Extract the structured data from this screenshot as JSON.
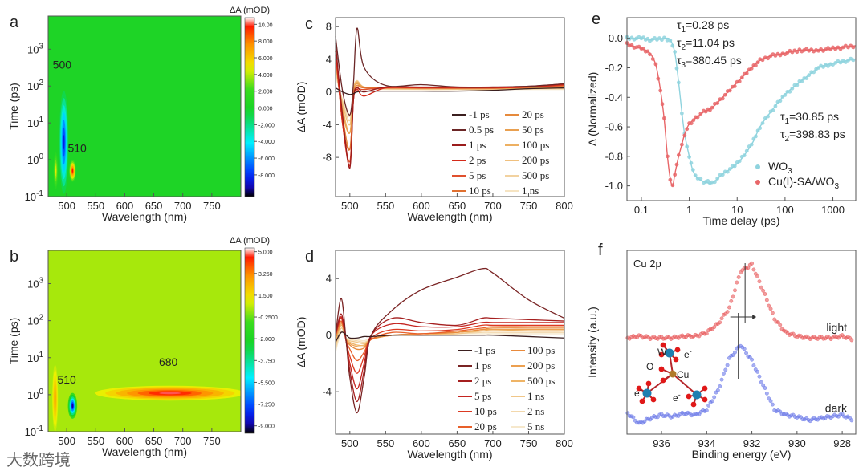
{
  "watermark": "大数跨境",
  "chart_data": [
    {
      "panel": "a",
      "type": "heatmap",
      "xlabel": "Wavelength (nm)",
      "ylabel": "Time (ps)",
      "colorbar_label": "ΔA (mOD)",
      "xlim": [
        468,
        800
      ],
      "ylim_log10": [
        -1,
        3.9
      ],
      "xticks": [
        500,
        550,
        600,
        650,
        700,
        750
      ],
      "yticks_log10": [
        -1,
        0,
        1,
        2,
        3
      ],
      "colorbar_range": [
        -10.6,
        10.8
      ],
      "colorbar_ticks": [
        "10.00",
        "8.000",
        "6.000",
        "4.000",
        "2.000",
        "0.000",
        "-2.000",
        "-4.000",
        "-6.000",
        "-8.000"
      ],
      "colorbar_tick_values": [
        10,
        8,
        6,
        4,
        2,
        0,
        -2,
        -4,
        -6,
        -8
      ],
      "background_dA": 0.3,
      "features": [
        {
          "wavelength": 481,
          "time": 0.5,
          "dA": 5,
          "wl_halfwidth": 4,
          "log_time_halfwidth": 0.5
        },
        {
          "wavelength": 495,
          "time": 3,
          "dA": -8.5,
          "wl_halfwidth": 8,
          "log_time_halfwidth": 1.4
        },
        {
          "wavelength": 510,
          "time": 0.5,
          "dA": 10,
          "wl_halfwidth": 6,
          "log_time_halfwidth": 0.3
        }
      ],
      "annotations": [
        {
          "text": "500",
          "wavelength": 492,
          "time": 300
        },
        {
          "text": "510",
          "wavelength": 518,
          "time": 1.6
        }
      ]
    },
    {
      "panel": "b",
      "type": "heatmap",
      "xlabel": "Wavelength (nm)",
      "ylabel": "Time (ps)",
      "colorbar_label": "ΔA (mOD)",
      "xlim": [
        468,
        800
      ],
      "ylim_log10": [
        -1,
        3.9
      ],
      "xticks": [
        500,
        550,
        600,
        650,
        700,
        750
      ],
      "yticks_log10": [
        -1,
        0,
        1,
        2,
        3
      ],
      "colorbar_range": [
        -9.6,
        5.3
      ],
      "colorbar_ticks": [
        "5.000",
        "3.250",
        "1.500",
        "-0.2500",
        "-2.000",
        "-3.750",
        "-5.500",
        "-7.250",
        "-9.000"
      ],
      "colorbar_tick_values": [
        5,
        3.25,
        1.5,
        -0.25,
        -2,
        -3.75,
        -5.5,
        -7.25,
        -9
      ],
      "background_dA": 0.4,
      "features": [
        {
          "wavelength": 480,
          "time": 0.8,
          "dA": 2.8,
          "wl_halfwidth": 5,
          "log_time_halfwidth": 0.9
        },
        {
          "wavelength": 678,
          "time": 1.1,
          "dA": 5,
          "wl_halfwidth": 130,
          "log_time_halfwidth": 0.2
        },
        {
          "wavelength": 510,
          "time": 0.5,
          "dA": -9,
          "wl_halfwidth": 8,
          "log_time_halfwidth": 0.35
        }
      ],
      "annotations": [
        {
          "text": "510",
          "wavelength": 500,
          "time": 2
        },
        {
          "text": "680",
          "wavelength": 675,
          "time": 6
        }
      ]
    },
    {
      "panel": "c",
      "type": "line",
      "xlabel": "Wavelength (nm)",
      "ylabel": "ΔA (mOD)",
      "xlim": [
        480,
        800
      ],
      "ylim": [
        -12.8,
        9.1
      ],
      "xticks": [
        500,
        550,
        600,
        650,
        700,
        750,
        800
      ],
      "yticks": [
        8,
        4,
        0,
        -4,
        -8
      ],
      "x": [
        480,
        490,
        500,
        505,
        510,
        520,
        550,
        600,
        650,
        700,
        750,
        800
      ],
      "series": [
        {
          "name": "-1 ps",
          "color": "#3b1f1f",
          "values": [
            0.5,
            0,
            -0.3,
            -0.2,
            0,
            0.1,
            0.1,
            0.1,
            0.1,
            0.2,
            0.4,
            0.5
          ]
        },
        {
          "name": "0.5 ps",
          "color": "#6b2626",
          "values": [
            6.8,
            0,
            -2.8,
            1,
            7.8,
            3,
            0.8,
            0.9,
            0.6,
            0.6,
            0.7,
            1.0
          ]
        },
        {
          "name": "1 ps",
          "color": "#9b1c1c",
          "values": [
            6,
            -3,
            -9.3,
            -1,
            0.5,
            0,
            0.6,
            0.6,
            0.6,
            0.6,
            0.7,
            1
          ]
        },
        {
          "name": "2 ps",
          "color": "#d42a1a",
          "values": [
            5,
            -4,
            -9,
            -1,
            0.3,
            -0.5,
            0.5,
            0.5,
            0.5,
            0.5,
            0.6,
            0.9
          ]
        },
        {
          "name": "5 ps",
          "color": "#e0502e",
          "values": [
            5,
            -4,
            -8.5,
            -1,
            0.3,
            0.3,
            0.5,
            0.5,
            0.5,
            0.5,
            0.6,
            0.8
          ]
        },
        {
          "name": "10 ps",
          "color": "#e07030",
          "values": [
            5,
            -4,
            -7,
            -0.5,
            0.6,
            0.5,
            0.5,
            0.5,
            0.5,
            0.5,
            0.6,
            0.8
          ]
        },
        {
          "name": "20 ps",
          "color": "#e68a3c",
          "values": [
            4.5,
            -3,
            -7,
            -0.5,
            0.8,
            0.5,
            0.5,
            0.5,
            0.5,
            0.5,
            0.6,
            0.7
          ]
        },
        {
          "name": "50 ps",
          "color": "#e9a050",
          "values": [
            4,
            -2.5,
            -5,
            0,
            1,
            0.6,
            0.5,
            0.5,
            0.4,
            0.4,
            0.5,
            0.6
          ]
        },
        {
          "name": "100 ps",
          "color": "#edb062",
          "values": [
            3.5,
            -2,
            -5,
            0,
            1.2,
            0.6,
            0.5,
            0.4,
            0.4,
            0.4,
            0.5,
            0.6
          ]
        },
        {
          "name": "200 ps",
          "color": "#f0c07e",
          "values": [
            3,
            -1.5,
            -4,
            0.3,
            1.3,
            0.6,
            0.4,
            0.4,
            0.4,
            0.4,
            0.4,
            0.5
          ]
        },
        {
          "name": "500 ps",
          "color": "#f2d2a0",
          "values": [
            2.5,
            -1.2,
            -3.5,
            0.3,
            1.4,
            0.6,
            0.4,
            0.3,
            0.3,
            0.3,
            0.4,
            0.4
          ]
        },
        {
          "name": "1 ns",
          "color": "#f6e4c2",
          "values": [
            2,
            -1,
            -3,
            0.3,
            1.2,
            0.5,
            0.3,
            0.3,
            0.3,
            0.3,
            0.3,
            0.3
          ]
        }
      ]
    },
    {
      "panel": "d",
      "type": "line",
      "xlabel": "Wavelength (nm)",
      "ylabel": "ΔA (mOD)",
      "xlim": [
        480,
        800
      ],
      "ylim": [
        -7,
        6
      ],
      "xticks": [
        500,
        550,
        600,
        650,
        700,
        750,
        800
      ],
      "yticks": [
        4,
        0,
        -4
      ],
      "x": [
        480,
        488,
        495,
        500,
        510,
        520,
        530,
        560,
        600,
        650,
        685,
        700,
        750,
        800
      ],
      "series": [
        {
          "name": "-1 ps",
          "color": "#3b1f1f",
          "values": [
            -0.5,
            0.2,
            0,
            -0.2,
            -0.2,
            -0.1,
            -0.1,
            0,
            0,
            0,
            0,
            0,
            -0.1,
            -0.2
          ]
        },
        {
          "name": "1 ps",
          "color": "#7a2424",
          "values": [
            0,
            2.6,
            -0.5,
            -3,
            -5.5,
            -3,
            0,
            1.8,
            3.2,
            4.1,
            4.7,
            4.4,
            2.5,
            1.2
          ]
        },
        {
          "name": "2 ps",
          "color": "#a51f1f",
          "values": [
            0,
            1.5,
            -0.5,
            -2.5,
            -4.7,
            -2.5,
            0,
            1.2,
            0.9,
            0.7,
            1.2,
            1.2,
            1.1,
            1.0
          ]
        },
        {
          "name": "5 ps",
          "color": "#c42420",
          "values": [
            0,
            1.3,
            -0.5,
            -2,
            -3.8,
            -2,
            0,
            0.8,
            0.6,
            0.6,
            0.9,
            0.9,
            0.9,
            0.9
          ]
        },
        {
          "name": "10 ps",
          "color": "#dc3a22",
          "values": [
            0,
            1.2,
            -0.5,
            -1.5,
            -2.7,
            -1.5,
            -0.2,
            0.4,
            0.3,
            0.4,
            0.7,
            0.7,
            0.7,
            0.7
          ]
        },
        {
          "name": "20 ps",
          "color": "#e8602a",
          "values": [
            0,
            1,
            -0.4,
            -1,
            -1.8,
            -1.2,
            -0.3,
            0.2,
            0.1,
            0.3,
            0.5,
            0.6,
            0.6,
            0.6
          ]
        },
        {
          "name": "100 ps",
          "color": "#e88a3c",
          "values": [
            -0.2,
            0.9,
            -0.3,
            -0.7,
            -1.0,
            -0.9,
            -0.3,
            0,
            0.1,
            0.2,
            0.4,
            0.5,
            0.5,
            0.5
          ]
        },
        {
          "name": "200 ps",
          "color": "#eca050",
          "values": [
            -0.3,
            0.8,
            -0.3,
            -0.6,
            -0.8,
            -0.8,
            -0.3,
            0,
            0.1,
            0.2,
            0.4,
            0.4,
            0.4,
            0.4
          ]
        },
        {
          "name": "500 ps",
          "color": "#efb466",
          "values": [
            -0.5,
            0.7,
            -0.3,
            -0.5,
            -0.7,
            -0.7,
            -0.3,
            0,
            0,
            0.2,
            0.3,
            0.4,
            0.3,
            0.3
          ]
        },
        {
          "name": "1 ns",
          "color": "#f0c688",
          "values": [
            -0.8,
            0.5,
            -0.3,
            -0.4,
            -0.5,
            -0.6,
            -0.3,
            0,
            0,
            0.1,
            0.3,
            0.3,
            0.3,
            0.3
          ]
        },
        {
          "name": "2 ns",
          "color": "#f3d8ac",
          "values": [
            -1,
            0.3,
            -0.3,
            -0.3,
            -0.4,
            -0.5,
            -0.3,
            0,
            0,
            0.1,
            0.2,
            0.2,
            0.2,
            0.2
          ]
        },
        {
          "name": "5 ns",
          "color": "#f6e8cc",
          "values": [
            -1.2,
            0.2,
            -0.2,
            -0.2,
            -0.3,
            -0.4,
            -0.2,
            0,
            0,
            0.1,
            0.1,
            0.1,
            0.1,
            0.1
          ]
        }
      ]
    },
    {
      "panel": "e",
      "type": "scatter",
      "xlabel": "Time delay (ps)",
      "ylabel": "Δ (Normalized)",
      "xscale": "log",
      "xlim": [
        0.05,
        3000
      ],
      "ylim": [
        -1.1,
        0.14
      ],
      "xticks": [
        0.1,
        1,
        10,
        100,
        1000
      ],
      "xticklabels": [
        "0.1",
        "1",
        "10",
        "100",
        "1000"
      ],
      "yticks": [
        0.0,
        -0.2,
        -0.4,
        -0.6,
        -0.8,
        -1.0
      ],
      "yticklabels": [
        "0.0",
        "-0.2",
        "-0.4",
        "-0.6",
        "-0.8",
        "-1.0"
      ],
      "legend_position": "bottom-right",
      "series": [
        {
          "name": "WO3",
          "legend_main": "WO",
          "legend_sub": "3",
          "color": "#8fd3de",
          "x": [
            0.05,
            0.1,
            0.15,
            0.3,
            0.4,
            0.5,
            0.6,
            0.7,
            0.8,
            1,
            1.2,
            1.5,
            2,
            3,
            5,
            10,
            20,
            30,
            50,
            100,
            200,
            500,
            1000,
            3000
          ],
          "y": [
            0,
            0,
            -0.01,
            0,
            -0.01,
            -0.1,
            -0.3,
            -0.5,
            -0.65,
            -0.8,
            -0.9,
            -0.95,
            -0.97,
            -0.98,
            -0.92,
            -0.85,
            -0.72,
            -0.6,
            -0.5,
            -0.38,
            -0.3,
            -0.2,
            -0.17,
            -0.14
          ],
          "fit_params": [
            {
              "label": "τ",
              "sub": "1",
              "value": "=30.85 ps"
            },
            {
              "label": "τ",
              "sub": "2",
              "value": "=398.83 ps"
            }
          ]
        },
        {
          "name": "Cu(I)-SA/WO3",
          "legend_main": "Cu(I)-SA/WO",
          "legend_sub": "3",
          "color": "#e86668",
          "x": [
            0.05,
            0.1,
            0.15,
            0.2,
            0.25,
            0.3,
            0.35,
            0.4,
            0.45,
            0.5,
            0.6,
            0.7,
            0.8,
            1,
            1.5,
            2,
            3,
            5,
            10,
            20,
            30,
            50,
            100,
            200,
            500,
            1000,
            3000
          ],
          "y": [
            -0.04,
            -0.07,
            -0.1,
            -0.18,
            -0.35,
            -0.55,
            -0.8,
            -0.95,
            -1.0,
            -0.92,
            -0.8,
            -0.72,
            -0.65,
            -0.58,
            -0.53,
            -0.5,
            -0.47,
            -0.4,
            -0.3,
            -0.2,
            -0.15,
            -0.12,
            -0.1,
            -0.08,
            -0.08,
            -0.07,
            -0.05
          ],
          "fit_params": [
            {
              "label": "τ",
              "sub": "1",
              "value": "=0.28 ps"
            },
            {
              "label": "τ",
              "sub": "2",
              "value": "=11.04 ps"
            },
            {
              "label": "τ",
              "sub": "3",
              "value": "=380.45 ps"
            }
          ]
        }
      ]
    },
    {
      "panel": "f",
      "type": "scatter",
      "title": "Cu 2p",
      "xlabel": "Binding energy (eV)",
      "ylabel": "Intensity (a.u.)",
      "xlim": [
        937.53,
        927.4
      ],
      "ylim": [
        0,
        1.05
      ],
      "x_reversed": true,
      "xticks": [
        936,
        934,
        932,
        930,
        928
      ],
      "x": [
        937.5,
        937,
        936.5,
        936,
        935.5,
        935,
        934.5,
        934,
        933.5,
        933,
        932.5,
        932,
        931.5,
        931,
        930.5,
        930,
        929.5,
        929,
        928.5,
        928,
        927.5
      ],
      "series": [
        {
          "name": "light",
          "color": "#e85a5c",
          "values": [
            0.55,
            0.56,
            0.55,
            0.55,
            0.55,
            0.56,
            0.56,
            0.58,
            0.63,
            0.72,
            0.93,
            0.97,
            0.82,
            0.66,
            0.58,
            0.56,
            0.55,
            0.55,
            0.55,
            0.56,
            0.54
          ]
        },
        {
          "name": "dark",
          "color": "#6a78e8",
          "values": [
            0.12,
            0.06,
            0.09,
            0.11,
            0.1,
            0.12,
            0.11,
            0.14,
            0.25,
            0.43,
            0.51,
            0.42,
            0.28,
            0.14,
            0.11,
            0.1,
            0.08,
            0.09,
            0.1,
            0.11,
            0.08
          ]
        }
      ],
      "peak_markers": [
        {
          "energy": 932.3,
          "label": "light"
        },
        {
          "energy": 932.6,
          "label": "dark"
        }
      ],
      "inset_labels": {
        "w": "W",
        "o": "O",
        "cu": "Cu",
        "electron": "e",
        "electron_sup": "-"
      }
    }
  ]
}
